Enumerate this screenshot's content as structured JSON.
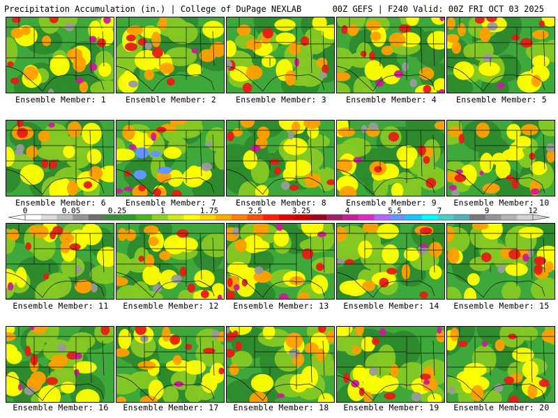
{
  "header": {
    "title_left": "Precipitation Accumulation (in.) | College of DuPage NEXLAB",
    "title_right": "00Z GEFS | F240 Valid: 00Z FRI OCT 03 2025"
  },
  "members": [
    "Ensemble Member: 1",
    "Ensemble Member: 2",
    "Ensemble Member: 3",
    "Ensemble Member: 4",
    "Ensemble Member: 5",
    "Ensemble Member: 6",
    "Ensemble Member: 7",
    "Ensemble Member: 8",
    "Ensemble Member: 9",
    "Ensemble Member: 10",
    "Ensemble Member: 11",
    "Ensemble Member: 12",
    "Ensemble Member: 13",
    "Ensemble Member: 14",
    "Ensemble Member: 15",
    "Ensemble Member: 16",
    "Ensemble Member: 17",
    "Ensemble Member: 18",
    "Ensemble Member: 19",
    "Ensemble Member: 20"
  ],
  "colorbar": {
    "ticks": [
      "0",
      "0.05",
      "0.25",
      "1",
      "1.75",
      "2.5",
      "3.25",
      "4",
      "5.5",
      "7",
      "9",
      "12"
    ],
    "colors": [
      "#ffffff",
      "#dcdcdc",
      "#bebebe",
      "#969696",
      "#6e6e6e",
      "#3c8c3c",
      "#2aa02a",
      "#48b818",
      "#8cd21e",
      "#d2eb14",
      "#ffff00",
      "#ffd700",
      "#ffaa00",
      "#ff7f00",
      "#ff5000",
      "#ff1e00",
      "#e60000",
      "#c80000",
      "#a0001e",
      "#a01e64",
      "#c81e96",
      "#e628c8",
      "#b464ff",
      "#6496ff",
      "#14c8ff",
      "#00ffff",
      "#46d2c8",
      "#50b4b4",
      "#787878",
      "#969696",
      "#b4b4b4",
      "#d2d2d2"
    ]
  },
  "palette": {
    "green_dark": "#2d8a2d",
    "green": "#3ea83a",
    "green_light": "#86c924",
    "yellow": "#ffff00",
    "orange": "#ff9f00",
    "red": "#e61e14",
    "magenta": "#c81e96",
    "gray": "#9a9a9a",
    "blue": "#6496ff"
  }
}
